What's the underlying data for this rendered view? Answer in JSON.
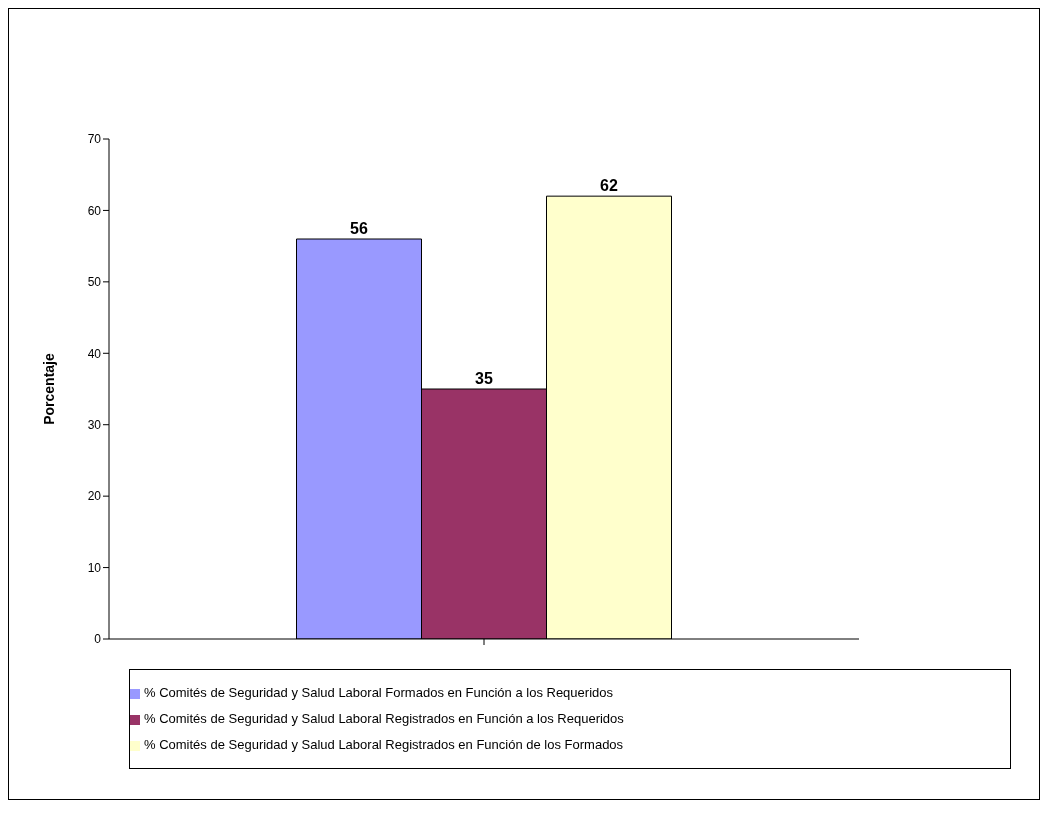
{
  "chart_data": {
    "type": "bar",
    "categories": [
      null
    ],
    "ylabel": "Porcentaje",
    "series": [
      {
        "name": "% Comités de Seguridad y Salud Laboral Formados en Función a los Requeridos",
        "color": "#9999ff",
        "values": [
          56
        ]
      },
      {
        "name": "% Comités de Seguridad y Salud Laboral Registrados en Función a los Requeridos",
        "color": "#993366",
        "values": [
          35
        ]
      },
      {
        "name": "% Comités de Seguridad y Salud Laboral Registrados en Función de los Formados",
        "color": "#ffffcc",
        "values": [
          62
        ]
      }
    ],
    "ylim": [
      0,
      70
    ],
    "yticks": [
      0,
      10,
      20,
      30,
      40,
      50,
      60,
      70
    ],
    "data_labels": true,
    "legend": "bottom",
    "grid": false
  }
}
